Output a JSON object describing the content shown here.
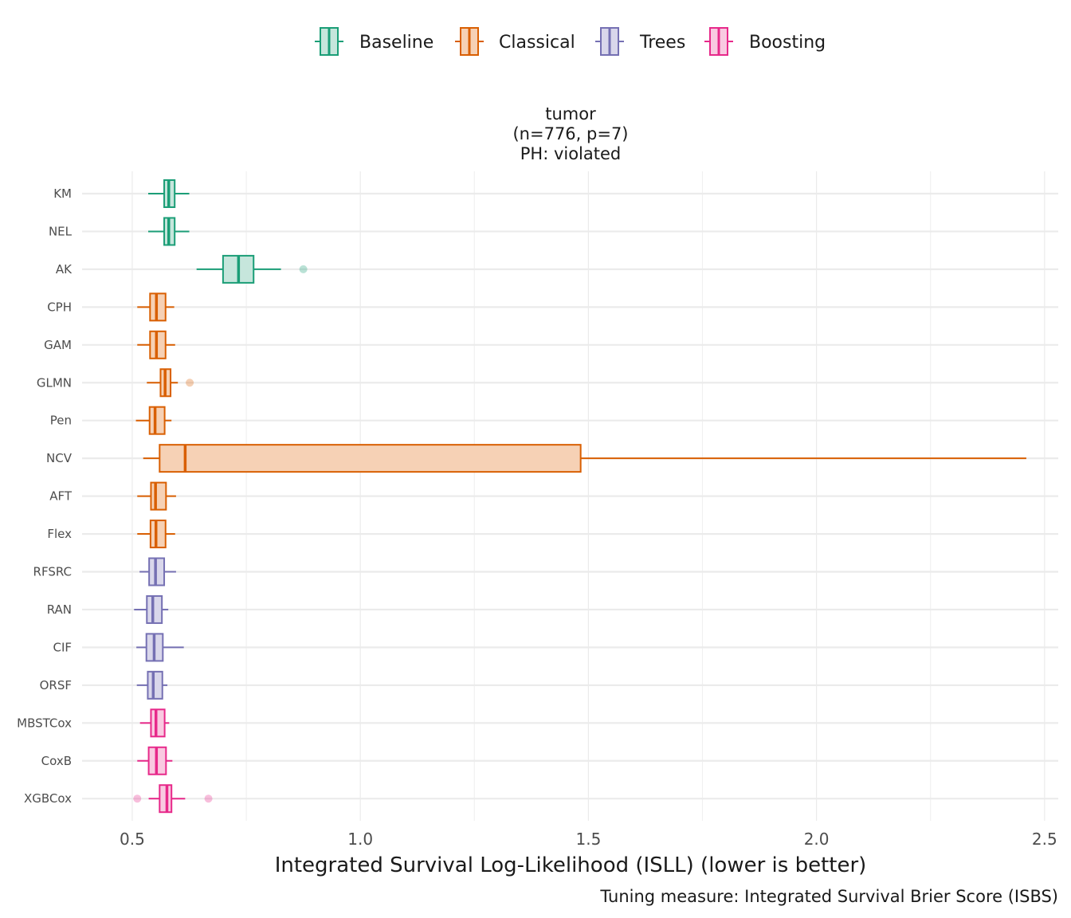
{
  "chart_data": {
    "type": "boxplot",
    "orientation": "horizontal",
    "title_lines": [
      "tumor",
      "(n=776, p=7)",
      "PH: violated"
    ],
    "xlabel": "Integrated Survival Log-Likelihood (ISLL) (lower is better)",
    "caption": "Tuning measure: Integrated Survival Brier Score (ISBS)",
    "xlim": [
      0.39,
      2.53
    ],
    "x_ticks": [
      0.5,
      1.0,
      1.5,
      2.0,
      2.5
    ],
    "x_tick_labels": [
      "0.5",
      "1.0",
      "1.5",
      "2.0",
      "2.5"
    ],
    "legend_position": "top",
    "groups": [
      {
        "name": "Baseline",
        "color": "#1B9E77",
        "fill": "#C6E6DC"
      },
      {
        "name": "Classical",
        "color": "#D95F02",
        "fill": "#F6D1B5"
      },
      {
        "name": "Trees",
        "color": "#7570B3",
        "fill": "#D9D7EB"
      },
      {
        "name": "Boosting",
        "color": "#E7298A",
        "fill": "#F9CAE1"
      }
    ],
    "models": [
      {
        "name": "KM",
        "group": "Baseline",
        "whisker_low": 0.535,
        "q1": 0.57,
        "median": 0.58,
        "q3": 0.593,
        "whisker_high": 0.625,
        "outliers": []
      },
      {
        "name": "NEL",
        "group": "Baseline",
        "whisker_low": 0.535,
        "q1": 0.57,
        "median": 0.58,
        "q3": 0.593,
        "whisker_high": 0.625,
        "outliers": []
      },
      {
        "name": "AK",
        "group": "Baseline",
        "whisker_low": 0.641,
        "q1": 0.699,
        "median": 0.733,
        "q3": 0.766,
        "whisker_high": 0.826,
        "outliers": [
          0.875
        ]
      },
      {
        "name": "CPH",
        "group": "Classical",
        "whisker_low": 0.511,
        "q1": 0.539,
        "median": 0.553,
        "q3": 0.573,
        "whisker_high": 0.592,
        "outliers": []
      },
      {
        "name": "GAM",
        "group": "Classical",
        "whisker_low": 0.511,
        "q1": 0.539,
        "median": 0.553,
        "q3": 0.573,
        "whisker_high": 0.594,
        "outliers": []
      },
      {
        "name": "GLMN",
        "group": "Classical",
        "whisker_low": 0.532,
        "q1": 0.562,
        "median": 0.572,
        "q3": 0.584,
        "whisker_high": 0.6,
        "outliers": [
          0.626
        ]
      },
      {
        "name": "Pen",
        "group": "Classical",
        "whisker_low": 0.508,
        "q1": 0.538,
        "median": 0.55,
        "q3": 0.571,
        "whisker_high": 0.586,
        "outliers": []
      },
      {
        "name": "NCV",
        "group": "Classical",
        "whisker_low": 0.524,
        "q1": 0.56,
        "median": 0.616,
        "q3": 1.483,
        "whisker_high": 2.46,
        "outliers": []
      },
      {
        "name": "AFT",
        "group": "Classical",
        "whisker_low": 0.511,
        "q1": 0.541,
        "median": 0.551,
        "q3": 0.574,
        "whisker_high": 0.596,
        "outliers": []
      },
      {
        "name": "Flex",
        "group": "Classical",
        "whisker_low": 0.511,
        "q1": 0.54,
        "median": 0.552,
        "q3": 0.573,
        "whisker_high": 0.594,
        "outliers": []
      },
      {
        "name": "RFSRC",
        "group": "Trees",
        "whisker_low": 0.516,
        "q1": 0.537,
        "median": 0.551,
        "q3": 0.57,
        "whisker_high": 0.596,
        "outliers": []
      },
      {
        "name": "RAN",
        "group": "Trees",
        "whisker_low": 0.504,
        "q1": 0.532,
        "median": 0.545,
        "q3": 0.565,
        "whisker_high": 0.579,
        "outliers": []
      },
      {
        "name": "CIF",
        "group": "Trees",
        "whisker_low": 0.509,
        "q1": 0.531,
        "median": 0.548,
        "q3": 0.567,
        "whisker_high": 0.613,
        "outliers": []
      },
      {
        "name": "ORSF",
        "group": "Trees",
        "whisker_low": 0.51,
        "q1": 0.534,
        "median": 0.546,
        "q3": 0.566,
        "whisker_high": 0.577,
        "outliers": []
      },
      {
        "name": "MBSTCox",
        "group": "Boosting",
        "whisker_low": 0.517,
        "q1": 0.541,
        "median": 0.552,
        "q3": 0.571,
        "whisker_high": 0.581,
        "outliers": []
      },
      {
        "name": "CoxB",
        "group": "Boosting",
        "whisker_low": 0.511,
        "q1": 0.536,
        "median": 0.553,
        "q3": 0.574,
        "whisker_high": 0.588,
        "outliers": []
      },
      {
        "name": "XGBCox",
        "group": "Boosting",
        "whisker_low": 0.536,
        "q1": 0.56,
        "median": 0.576,
        "q3": 0.586,
        "whisker_high": 0.616,
        "outliers": [
          0.511,
          0.667
        ]
      }
    ]
  }
}
